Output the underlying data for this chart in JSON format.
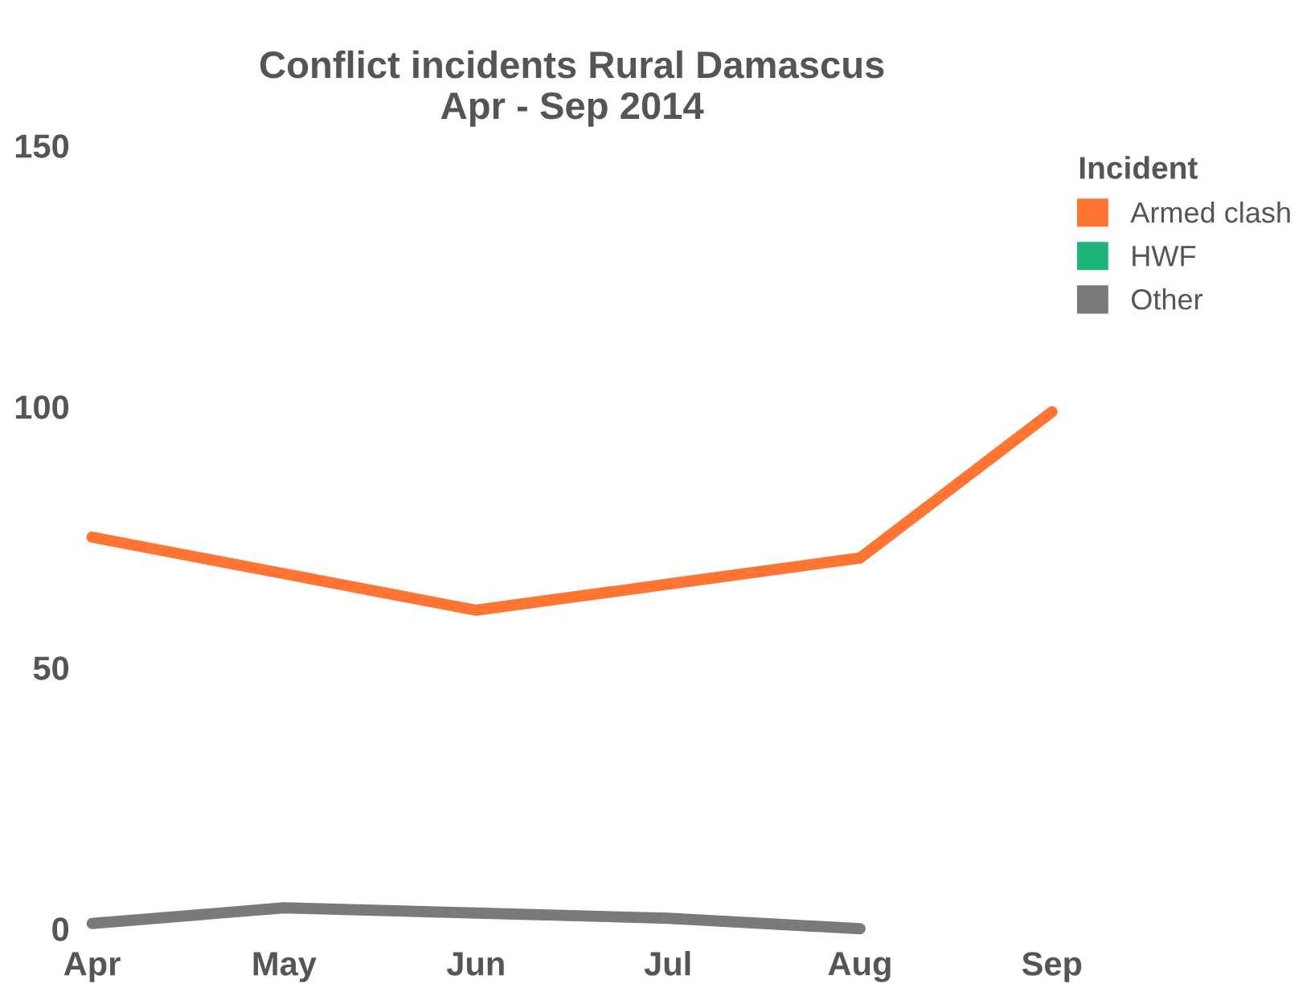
{
  "chart_data": {
    "type": "line",
    "title": "Conflict incidents Rural Damascus\nApr - Sep 2014",
    "legend_title": "Incident",
    "categories": [
      "Apr",
      "May",
      "Jun",
      "Jul",
      "Aug",
      "Sep"
    ],
    "series": [
      {
        "name": "Armed clash",
        "color": "#ff7433",
        "values": [
          75,
          68,
          61,
          66,
          71,
          99
        ]
      },
      {
        "name": "HWF",
        "color": "#1fb57a",
        "values": [
          null,
          null,
          null,
          null,
          null,
          null
        ]
      },
      {
        "name": "Other",
        "color": "#7a7a7a",
        "values": [
          1,
          4,
          3,
          2,
          0,
          null
        ]
      }
    ],
    "ylim": [
      0,
      150
    ],
    "yticks": [
      0,
      50,
      100,
      150
    ],
    "grid": false,
    "legend": "top right",
    "line_style": "solid",
    "marker": "none"
  }
}
